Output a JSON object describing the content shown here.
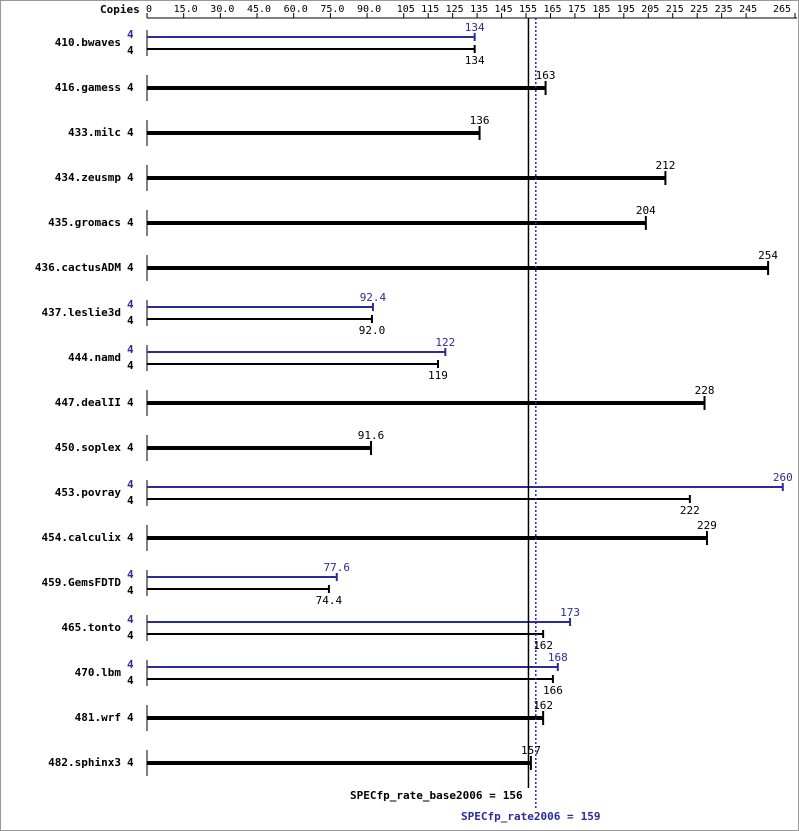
{
  "chart_data": {
    "type": "bar",
    "orientation": "horizontal",
    "copies_header": "Copies",
    "categories": [
      "410.bwaves",
      "416.gamess",
      "433.milc",
      "434.zeusmp",
      "435.gromacs",
      "436.cactusADM",
      "437.leslie3d",
      "444.namd",
      "447.dealII",
      "450.soplex",
      "453.povray",
      "454.calculix",
      "459.GemsFDTD",
      "465.tonto",
      "470.lbm",
      "481.wrf",
      "482.sphinx3"
    ],
    "series": [
      {
        "color": "#2b2b9a",
        "copies": [
          4,
          null,
          null,
          null,
          null,
          null,
          4,
          4,
          null,
          null,
          4,
          null,
          4,
          4,
          4,
          null,
          null
        ],
        "values": [
          134,
          null,
          null,
          null,
          null,
          null,
          92.4,
          122,
          null,
          null,
          260,
          null,
          77.6,
          173,
          168,
          null,
          null
        ],
        "value_labels": [
          "134",
          null,
          null,
          null,
          null,
          null,
          "92.4",
          "122",
          null,
          null,
          "260",
          null,
          "77.6",
          "173",
          "168",
          null,
          null
        ]
      },
      {
        "color": "#000000",
        "copies": [
          4,
          4,
          4,
          4,
          4,
          4,
          4,
          4,
          4,
          4,
          4,
          4,
          4,
          4,
          4,
          4,
          4
        ],
        "values": [
          134,
          163,
          136,
          212,
          204,
          254,
          92.0,
          119,
          228,
          91.6,
          222,
          229,
          74.4,
          162,
          166,
          162,
          157
        ],
        "value_labels": [
          "134",
          "163",
          "136",
          "212",
          "204",
          "254",
          "92.0",
          "119",
          "228",
          "91.6",
          "222",
          "229",
          "74.4",
          "162",
          "166",
          "162",
          "157"
        ]
      }
    ],
    "xlim": [
      0,
      265
    ],
    "xticks": [
      0,
      {
        "value": 15,
        "label": "15.0"
      },
      {
        "value": 30,
        "label": "30.0"
      },
      {
        "value": 45,
        "label": "45.0"
      },
      {
        "value": 60,
        "label": "60.0"
      },
      {
        "value": 75,
        "label": "75.0"
      },
      {
        "value": 90,
        "label": "90.0"
      },
      105,
      115,
      125,
      135,
      145,
      155,
      165,
      175,
      185,
      195,
      205,
      215,
      225,
      235,
      245,
      265
    ],
    "summary": [
      {
        "label": "SPECfp_rate_base2006 =",
        "value": 156,
        "color": "#000000",
        "dashed": false
      },
      {
        "label": "SPECfp_rate2006 =",
        "value": 159,
        "color": "#2b2b9a",
        "dashed": true
      }
    ]
  }
}
